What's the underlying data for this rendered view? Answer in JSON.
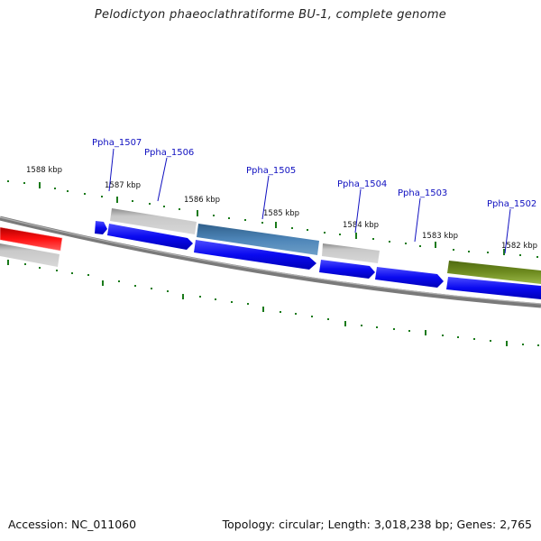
{
  "title": "Pelodictyon phaeoclathratiforme BU-1, complete genome",
  "accession": "Accession: NC_011060",
  "topology": "Topology: circular; Length: 3,018,238 bp; Genes: 2,765",
  "colors": {
    "backbone": "#7a7a7a",
    "ticks": "#1a7a1a",
    "label_text": "#1010c0",
    "cds_blue": "#0a0af0",
    "gray": "#bcbcbc",
    "steel_blue": "#4a7fb0",
    "red": "#f01010",
    "olive": "#6f8c20"
  },
  "scale_labels": [
    "1588 kbp",
    "1587 kbp",
    "1586 kbp",
    "1585 kbp",
    "1584 kbp",
    "1583 kbp",
    "1582 kbp"
  ],
  "gene_labels": [
    "Ppha_1507",
    "Ppha_1506",
    "Ppha_1505",
    "Ppha_1504",
    "Ppha_1503",
    "Ppha_1502"
  ]
}
